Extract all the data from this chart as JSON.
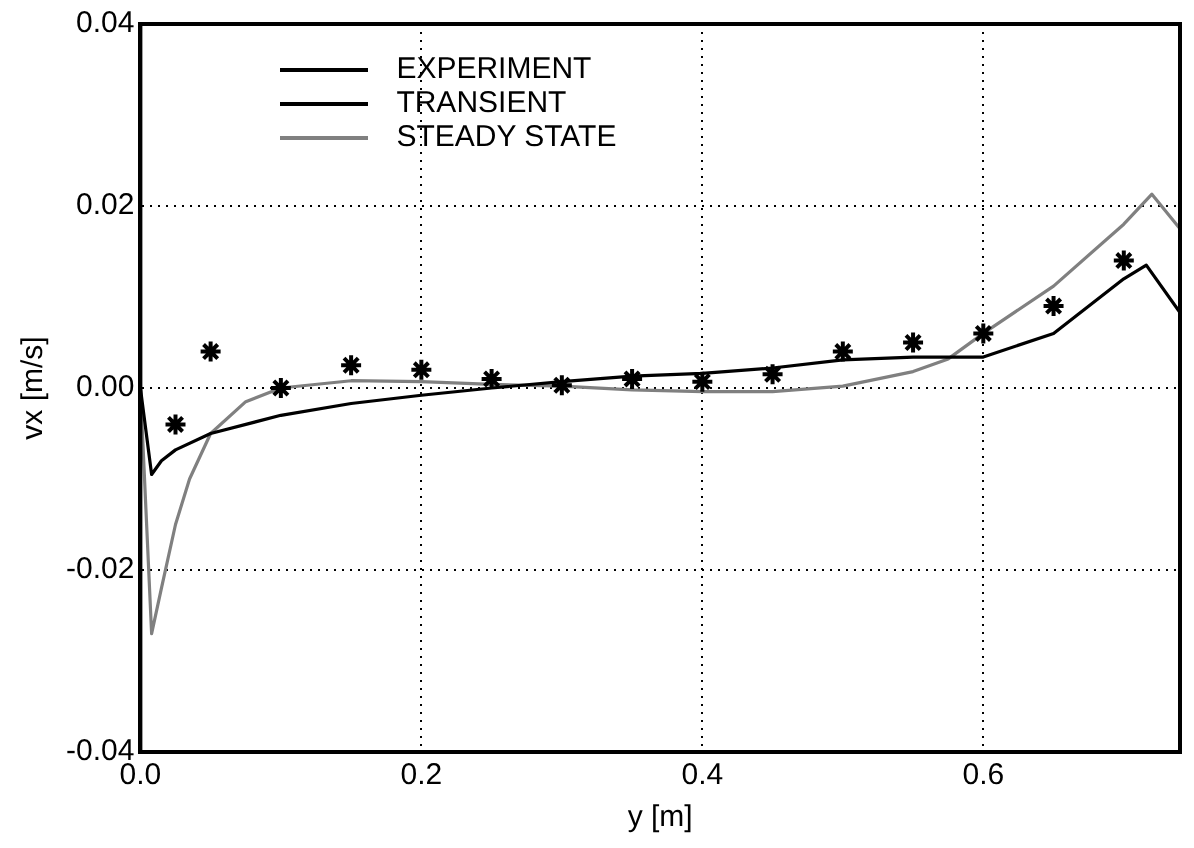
{
  "chart_data": {
    "type": "line",
    "xlabel": "y [m]",
    "ylabel": "vx [m/s]",
    "xlim": [
      0,
      0.74
    ],
    "ylim": [
      -0.04,
      0.04
    ],
    "xticks": [
      {
        "value": 0,
        "label": "0.0"
      },
      {
        "value": 0.2,
        "label": "0.2"
      },
      {
        "value": 0.4,
        "label": "0.4"
      },
      {
        "value": 0.6,
        "label": "0.6"
      }
    ],
    "yticks": [
      {
        "value": -0.04,
        "label": "-0.04"
      },
      {
        "value": -0.02,
        "label": "-0.02"
      },
      {
        "value": 0,
        "label": "0.00"
      },
      {
        "value": 0.02,
        "label": "0.02"
      },
      {
        "value": 0.04,
        "label": "0.04"
      }
    ],
    "grid": true,
    "legend": "top left",
    "line_style": "solid",
    "series": [
      {
        "name": "EXPERIMENT",
        "type": "scatter",
        "marker": "cross",
        "color": "#000000",
        "x": [
          0.025,
          0.05,
          0.1,
          0.15,
          0.2,
          0.25,
          0.3,
          0.35,
          0.4,
          0.45,
          0.5,
          0.55,
          0.6,
          0.65,
          0.7
        ],
        "values": [
          -0.004,
          0.004,
          0.0,
          0.0025,
          0.002,
          0.001,
          0.0003,
          0.001,
          0.0007,
          0.0015,
          0.004,
          0.005,
          0.006,
          0.009,
          0.014
        ]
      },
      {
        "name": "TRANSIENT",
        "type": "line",
        "color": "#000000",
        "x": [
          0,
          0.008,
          0.015,
          0.025,
          0.05,
          0.1,
          0.15,
          0.2,
          0.25,
          0.3,
          0.35,
          0.4,
          0.45,
          0.5,
          0.55,
          0.6,
          0.65,
          0.7,
          0.716,
          0.74
        ],
        "values": [
          0,
          -0.0095,
          -0.008,
          -0.0068,
          -0.005,
          -0.003,
          -0.0017,
          -0.0008,
          0,
          0.0007,
          0.0013,
          0.0016,
          0.0022,
          0.0031,
          0.0034,
          0.0034,
          0.006,
          0.012,
          0.0135,
          0.0083
        ]
      },
      {
        "name": "STEADY STATE",
        "type": "line",
        "color": "#808080",
        "x": [
          0,
          0.008,
          0.015,
          0.025,
          0.035,
          0.05,
          0.075,
          0.1,
          0.15,
          0.2,
          0.25,
          0.3,
          0.35,
          0.4,
          0.45,
          0.5,
          0.55,
          0.575,
          0.6,
          0.65,
          0.7,
          0.72,
          0.74
        ],
        "values": [
          0,
          -0.027,
          -0.022,
          -0.015,
          -0.01,
          -0.005,
          -0.0015,
          0,
          0.0008,
          0.0007,
          0.0004,
          0.0002,
          -0.0002,
          -0.0004,
          -0.0004,
          0.0002,
          0.0018,
          0.0032,
          0.006,
          0.0112,
          0.018,
          0.0213,
          0.0175
        ]
      }
    ]
  }
}
